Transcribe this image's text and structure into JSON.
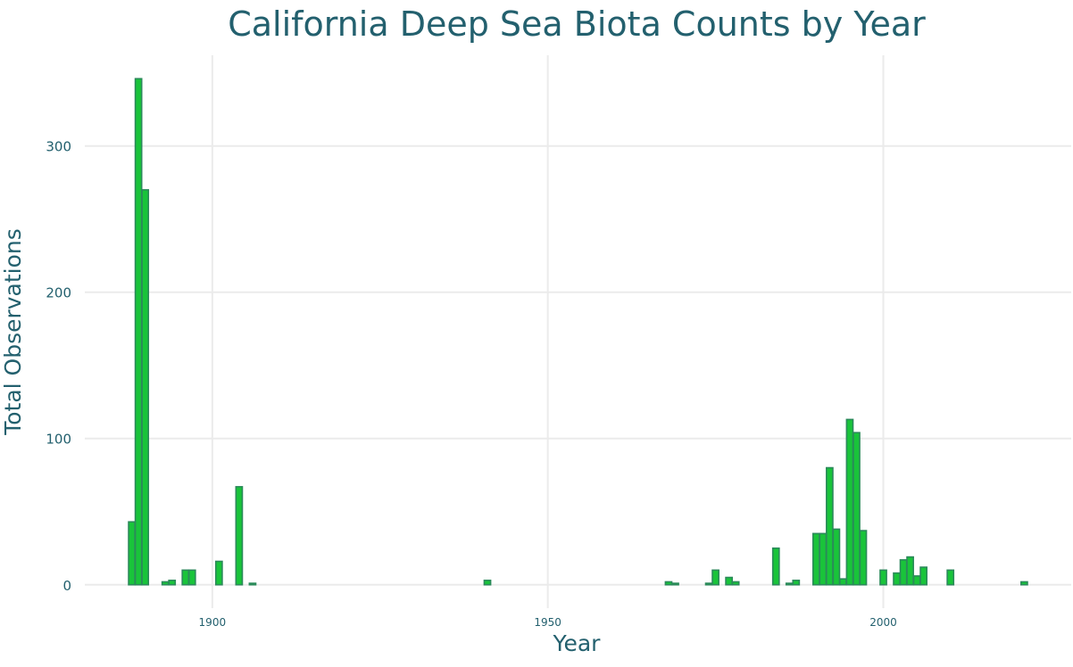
{
  "chart_data": {
    "type": "bar",
    "title": "California Deep Sea Biota Counts by Year",
    "xlabel": "Year",
    "ylabel": "Total Observations",
    "x_ticks": [
      1900,
      1950,
      2000
    ],
    "y_ticks": [
      0,
      100,
      200,
      300
    ],
    "xlim": [
      1881,
      2028
    ],
    "ylim": [
      -16,
      362
    ],
    "grid": true,
    "legend": "none",
    "colors": {
      "bar_fill": "#19c43a",
      "bar_outline": "#2b8a5a",
      "text": "#23606e",
      "grid": "#ebebeb"
    },
    "x": [
      1888,
      1889,
      1890,
      1893,
      1894,
      1896,
      1897,
      1901,
      1904,
      1906,
      1941,
      1968,
      1969,
      1974,
      1975,
      1977,
      1978,
      1984,
      1986,
      1987,
      1990,
      1991,
      1992,
      1993,
      1994,
      1995,
      1996,
      1997,
      2000,
      2002,
      2003,
      2004,
      2005,
      2006,
      2010,
      2021
    ],
    "values": [
      43,
      346,
      270,
      2,
      3,
      10,
      10,
      16,
      67,
      1,
      3,
      2,
      1,
      1,
      10,
      5,
      2,
      25,
      1,
      3,
      35,
      35,
      80,
      38,
      4,
      113,
      104,
      37,
      10,
      8,
      17,
      19,
      6,
      12,
      10,
      2
    ]
  }
}
